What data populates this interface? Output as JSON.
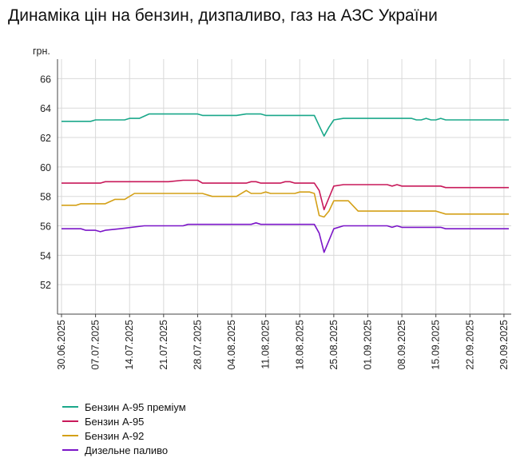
{
  "title": "Динаміка цін на бензин, дизпаливо, газ на АЗС України",
  "chart_data": {
    "type": "line",
    "title": "Динаміка цін на бензин, дизпаливо, газ на АЗС України",
    "ylabel": "грн.",
    "xlabel": "",
    "ylim": [
      50,
      67
    ],
    "yticks": [
      52,
      54,
      56,
      58,
      60,
      62,
      64,
      66
    ],
    "grid": true,
    "legend_position": "bottom-left",
    "x_start": "30.06.2025",
    "x_end": "30.09.2025",
    "x_tick_labels": [
      "30.06.2025",
      "07.07.2025",
      "14.07.2025",
      "21.07.2025",
      "28.07.2025",
      "04.08.2025",
      "11.08.2025",
      "18.08.2025",
      "25.08.2025",
      "01.09.2025",
      "08.09.2025",
      "15.09.2025",
      "22.09.2025",
      "29.09.2025"
    ],
    "series": [
      {
        "name": "Бензин А-95 преміум",
        "color": "#1aa88a",
        "points": [
          [
            "30.06.2025",
            63.1
          ],
          [
            "06.07.2025",
            63.1
          ],
          [
            "07.07.2025",
            63.2
          ],
          [
            "13.07.2025",
            63.2
          ],
          [
            "14.07.2025",
            63.3
          ],
          [
            "16.07.2025",
            63.3
          ],
          [
            "18.07.2025",
            63.6
          ],
          [
            "28.07.2025",
            63.6
          ],
          [
            "29.07.2025",
            63.5
          ],
          [
            "05.08.2025",
            63.5
          ],
          [
            "07.08.2025",
            63.6
          ],
          [
            "10.08.2025",
            63.6
          ],
          [
            "11.08.2025",
            63.5
          ],
          [
            "21.08.2025",
            63.5
          ],
          [
            "22.08.2025",
            62.8
          ],
          [
            "23.08.2025",
            62.1
          ],
          [
            "24.08.2025",
            62.7
          ],
          [
            "25.08.2025",
            63.2
          ],
          [
            "27.08.2025",
            63.3
          ],
          [
            "10.09.2025",
            63.3
          ],
          [
            "11.09.2025",
            63.2
          ],
          [
            "12.09.2025",
            63.2
          ],
          [
            "13.09.2025",
            63.3
          ],
          [
            "14.09.2025",
            63.2
          ],
          [
            "15.09.2025",
            63.2
          ],
          [
            "16.09.2025",
            63.3
          ],
          [
            "17.09.2025",
            63.2
          ],
          [
            "30.09.2025",
            63.2
          ]
        ]
      },
      {
        "name": "Бензин А-95",
        "color": "#c8195a",
        "points": [
          [
            "30.06.2025",
            58.9
          ],
          [
            "08.07.2025",
            58.9
          ],
          [
            "09.07.2025",
            59.0
          ],
          [
            "22.07.2025",
            59.0
          ],
          [
            "25.07.2025",
            59.1
          ],
          [
            "28.07.2025",
            59.1
          ],
          [
            "29.07.2025",
            58.9
          ],
          [
            "07.08.2025",
            58.9
          ],
          [
            "08.08.2025",
            59.0
          ],
          [
            "09.08.2025",
            59.0
          ],
          [
            "10.08.2025",
            58.9
          ],
          [
            "14.08.2025",
            58.9
          ],
          [
            "15.08.2025",
            59.0
          ],
          [
            "16.08.2025",
            59.0
          ],
          [
            "17.08.2025",
            58.9
          ],
          [
            "21.08.2025",
            58.9
          ],
          [
            "22.08.2025",
            58.4
          ],
          [
            "23.08.2025",
            57.1
          ],
          [
            "24.08.2025",
            57.9
          ],
          [
            "25.08.2025",
            58.7
          ],
          [
            "27.08.2025",
            58.8
          ],
          [
            "05.09.2025",
            58.8
          ],
          [
            "06.09.2025",
            58.7
          ],
          [
            "07.09.2025",
            58.8
          ],
          [
            "08.09.2025",
            58.7
          ],
          [
            "16.09.2025",
            58.7
          ],
          [
            "17.09.2025",
            58.6
          ],
          [
            "30.09.2025",
            58.6
          ]
        ]
      },
      {
        "name": "Бензин А-92",
        "color": "#d4a017",
        "points": [
          [
            "30.06.2025",
            57.4
          ],
          [
            "03.07.2025",
            57.4
          ],
          [
            "04.07.2025",
            57.5
          ],
          [
            "09.07.2025",
            57.5
          ],
          [
            "11.07.2025",
            57.8
          ],
          [
            "13.07.2025",
            57.8
          ],
          [
            "15.07.2025",
            58.2
          ],
          [
            "29.07.2025",
            58.2
          ],
          [
            "31.07.2025",
            58.0
          ],
          [
            "05.08.2025",
            58.0
          ],
          [
            "07.08.2025",
            58.4
          ],
          [
            "08.08.2025",
            58.2
          ],
          [
            "10.08.2025",
            58.2
          ],
          [
            "11.08.2025",
            58.3
          ],
          [
            "12.08.2025",
            58.2
          ],
          [
            "17.08.2025",
            58.2
          ],
          [
            "18.08.2025",
            58.3
          ],
          [
            "20.08.2025",
            58.3
          ],
          [
            "21.08.2025",
            58.2
          ],
          [
            "22.08.2025",
            56.7
          ],
          [
            "23.08.2025",
            56.6
          ],
          [
            "24.08.2025",
            57.0
          ],
          [
            "25.08.2025",
            57.7
          ],
          [
            "28.08.2025",
            57.7
          ],
          [
            "30.08.2025",
            57.0
          ],
          [
            "15.09.2025",
            57.0
          ],
          [
            "17.09.2025",
            56.8
          ],
          [
            "30.09.2025",
            56.8
          ]
        ]
      },
      {
        "name": "Дизельне паливо",
        "color": "#7b16c8",
        "points": [
          [
            "30.06.2025",
            55.8
          ],
          [
            "04.07.2025",
            55.8
          ],
          [
            "05.07.2025",
            55.7
          ],
          [
            "07.07.2025",
            55.7
          ],
          [
            "08.07.2025",
            55.6
          ],
          [
            "09.07.2025",
            55.7
          ],
          [
            "12.07.2025",
            55.8
          ],
          [
            "17.07.2025",
            56.0
          ],
          [
            "25.07.2025",
            56.0
          ],
          [
            "26.07.2025",
            56.1
          ],
          [
            "08.08.2025",
            56.1
          ],
          [
            "09.08.2025",
            56.2
          ],
          [
            "10.08.2025",
            56.1
          ],
          [
            "21.08.2025",
            56.1
          ],
          [
            "22.08.2025",
            55.5
          ],
          [
            "23.08.2025",
            54.2
          ],
          [
            "24.08.2025",
            55.0
          ],
          [
            "25.08.2025",
            55.8
          ],
          [
            "27.08.2025",
            56.0
          ],
          [
            "05.09.2025",
            56.0
          ],
          [
            "06.09.2025",
            55.9
          ],
          [
            "07.09.2025",
            56.0
          ],
          [
            "08.09.2025",
            55.9
          ],
          [
            "16.09.2025",
            55.9
          ],
          [
            "17.09.2025",
            55.8
          ],
          [
            "30.09.2025",
            55.8
          ]
        ]
      }
    ]
  }
}
